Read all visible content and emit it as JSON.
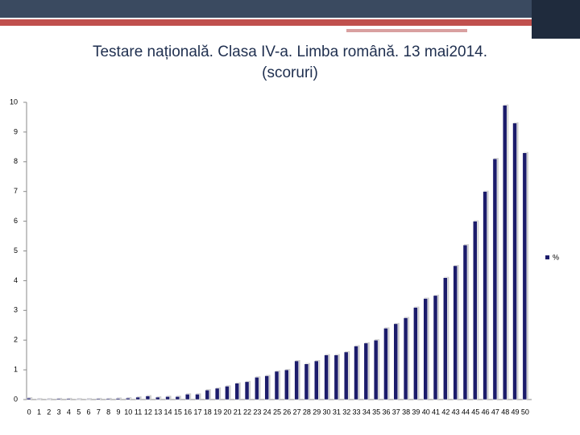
{
  "chart_data": {
    "type": "bar",
    "title": "Testare națională. Clasa IV-a. Limba română. 13 mai2014.",
    "subtitle": "(scoruri)",
    "categories": [
      "0",
      "1",
      "2",
      "3",
      "4",
      "5",
      "6",
      "7",
      "8",
      "9",
      "10",
      "11",
      "12",
      "13",
      "14",
      "15",
      "16",
      "17",
      "18",
      "19",
      "20",
      "21",
      "22",
      "23",
      "24",
      "25",
      "26",
      "27",
      "28",
      "29",
      "30",
      "31",
      "32",
      "33",
      "34",
      "35",
      "36",
      "37",
      "38",
      "39",
      "40",
      "41",
      "42",
      "43",
      "44",
      "45",
      "46",
      "47",
      "48",
      "49",
      "50"
    ],
    "series": [
      {
        "name": "%",
        "color": "#1c1c6b",
        "values": [
          0.05,
          0.02,
          0.02,
          0.03,
          0.03,
          0.02,
          0.02,
          0.03,
          0.03,
          0.04,
          0.05,
          0.08,
          0.12,
          0.08,
          0.1,
          0.1,
          0.18,
          0.18,
          0.32,
          0.38,
          0.45,
          0.55,
          0.6,
          0.75,
          0.8,
          0.95,
          1.0,
          1.3,
          1.2,
          1.3,
          1.5,
          1.5,
          1.6,
          1.8,
          1.9,
          2.0,
          2.4,
          2.55,
          2.75,
          3.1,
          3.4,
          3.5,
          4.1,
          4.5,
          5.2,
          6.0,
          7.0,
          8.1,
          9.9,
          9.3,
          8.3
        ]
      }
    ],
    "ylim": [
      0,
      10
    ],
    "yticks": [
      0,
      1,
      2,
      3,
      4,
      5,
      6,
      7,
      8,
      9,
      10
    ],
    "legend": "right"
  }
}
